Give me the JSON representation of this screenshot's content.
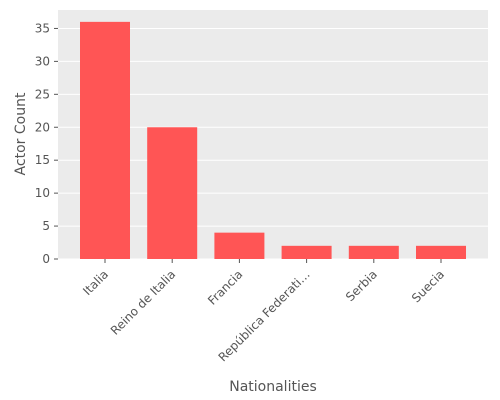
{
  "chart_data": {
    "type": "bar",
    "title": "",
    "xlabel": "Nationalities",
    "ylabel": "Actor Count",
    "categories": [
      "Italia",
      "Reino de Italia",
      "Francia",
      "República Federati…",
      "Serbia",
      "Suecia"
    ],
    "values": [
      36,
      20,
      4,
      2,
      2,
      2
    ],
    "ylim": [
      0,
      37.8
    ],
    "yticks": [
      0,
      5,
      10,
      15,
      20,
      25,
      30,
      35
    ],
    "grid": true,
    "legend": "none",
    "colors": {
      "bar": "#ff5555",
      "background": "#ebebeb",
      "grid": "#ffffff",
      "text": "#555555"
    }
  }
}
